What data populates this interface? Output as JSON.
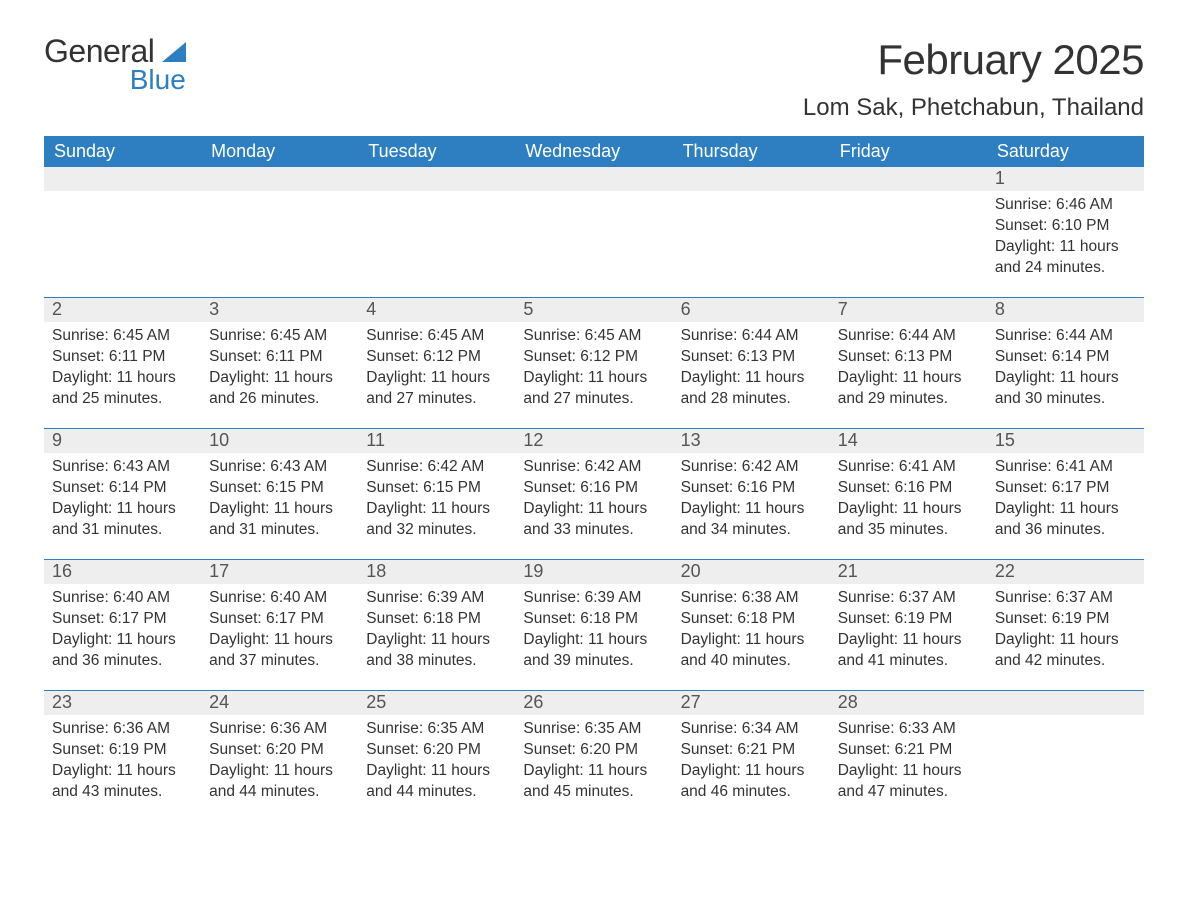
{
  "logo": {
    "wordA": "General",
    "wordB": "Blue",
    "triangleColor": "#2d7fc1"
  },
  "colors": {
    "headerBg": "#2d7fc1",
    "headerText": "#ffffff",
    "dayStripBg": "#eeeeee",
    "borderTop": "#2d7fc1",
    "bodyText": "#333333"
  },
  "title": "February 2025",
  "location": "Lom Sak, Phetchabun, Thailand",
  "weekdays": [
    "Sunday",
    "Monday",
    "Tuesday",
    "Wednesday",
    "Thursday",
    "Friday",
    "Saturday"
  ],
  "weeks": [
    [
      {
        "day": "",
        "lines": [
          "",
          "",
          "",
          ""
        ]
      },
      {
        "day": "",
        "lines": [
          "",
          "",
          "",
          ""
        ]
      },
      {
        "day": "",
        "lines": [
          "",
          "",
          "",
          ""
        ]
      },
      {
        "day": "",
        "lines": [
          "",
          "",
          "",
          ""
        ]
      },
      {
        "day": "",
        "lines": [
          "",
          "",
          "",
          ""
        ]
      },
      {
        "day": "",
        "lines": [
          "",
          "",
          "",
          ""
        ]
      },
      {
        "day": "1",
        "lines": [
          "Sunrise: 6:46 AM",
          "Sunset: 6:10 PM",
          "Daylight: 11 hours",
          "and 24 minutes."
        ]
      }
    ],
    [
      {
        "day": "2",
        "lines": [
          "Sunrise: 6:45 AM",
          "Sunset: 6:11 PM",
          "Daylight: 11 hours",
          "and 25 minutes."
        ]
      },
      {
        "day": "3",
        "lines": [
          "Sunrise: 6:45 AM",
          "Sunset: 6:11 PM",
          "Daylight: 11 hours",
          "and 26 minutes."
        ]
      },
      {
        "day": "4",
        "lines": [
          "Sunrise: 6:45 AM",
          "Sunset: 6:12 PM",
          "Daylight: 11 hours",
          "and 27 minutes."
        ]
      },
      {
        "day": "5",
        "lines": [
          "Sunrise: 6:45 AM",
          "Sunset: 6:12 PM",
          "Daylight: 11 hours",
          "and 27 minutes."
        ]
      },
      {
        "day": "6",
        "lines": [
          "Sunrise: 6:44 AM",
          "Sunset: 6:13 PM",
          "Daylight: 11 hours",
          "and 28 minutes."
        ]
      },
      {
        "day": "7",
        "lines": [
          "Sunrise: 6:44 AM",
          "Sunset: 6:13 PM",
          "Daylight: 11 hours",
          "and 29 minutes."
        ]
      },
      {
        "day": "8",
        "lines": [
          "Sunrise: 6:44 AM",
          "Sunset: 6:14 PM",
          "Daylight: 11 hours",
          "and 30 minutes."
        ]
      }
    ],
    [
      {
        "day": "9",
        "lines": [
          "Sunrise: 6:43 AM",
          "Sunset: 6:14 PM",
          "Daylight: 11 hours",
          "and 31 minutes."
        ]
      },
      {
        "day": "10",
        "lines": [
          "Sunrise: 6:43 AM",
          "Sunset: 6:15 PM",
          "Daylight: 11 hours",
          "and 31 minutes."
        ]
      },
      {
        "day": "11",
        "lines": [
          "Sunrise: 6:42 AM",
          "Sunset: 6:15 PM",
          "Daylight: 11 hours",
          "and 32 minutes."
        ]
      },
      {
        "day": "12",
        "lines": [
          "Sunrise: 6:42 AM",
          "Sunset: 6:16 PM",
          "Daylight: 11 hours",
          "and 33 minutes."
        ]
      },
      {
        "day": "13",
        "lines": [
          "Sunrise: 6:42 AM",
          "Sunset: 6:16 PM",
          "Daylight: 11 hours",
          "and 34 minutes."
        ]
      },
      {
        "day": "14",
        "lines": [
          "Sunrise: 6:41 AM",
          "Sunset: 6:16 PM",
          "Daylight: 11 hours",
          "and 35 minutes."
        ]
      },
      {
        "day": "15",
        "lines": [
          "Sunrise: 6:41 AM",
          "Sunset: 6:17 PM",
          "Daylight: 11 hours",
          "and 36 minutes."
        ]
      }
    ],
    [
      {
        "day": "16",
        "lines": [
          "Sunrise: 6:40 AM",
          "Sunset: 6:17 PM",
          "Daylight: 11 hours",
          "and 36 minutes."
        ]
      },
      {
        "day": "17",
        "lines": [
          "Sunrise: 6:40 AM",
          "Sunset: 6:17 PM",
          "Daylight: 11 hours",
          "and 37 minutes."
        ]
      },
      {
        "day": "18",
        "lines": [
          "Sunrise: 6:39 AM",
          "Sunset: 6:18 PM",
          "Daylight: 11 hours",
          "and 38 minutes."
        ]
      },
      {
        "day": "19",
        "lines": [
          "Sunrise: 6:39 AM",
          "Sunset: 6:18 PM",
          "Daylight: 11 hours",
          "and 39 minutes."
        ]
      },
      {
        "day": "20",
        "lines": [
          "Sunrise: 6:38 AM",
          "Sunset: 6:18 PM",
          "Daylight: 11 hours",
          "and 40 minutes."
        ]
      },
      {
        "day": "21",
        "lines": [
          "Sunrise: 6:37 AM",
          "Sunset: 6:19 PM",
          "Daylight: 11 hours",
          "and 41 minutes."
        ]
      },
      {
        "day": "22",
        "lines": [
          "Sunrise: 6:37 AM",
          "Sunset: 6:19 PM",
          "Daylight: 11 hours",
          "and 42 minutes."
        ]
      }
    ],
    [
      {
        "day": "23",
        "lines": [
          "Sunrise: 6:36 AM",
          "Sunset: 6:19 PM",
          "Daylight: 11 hours",
          "and 43 minutes."
        ]
      },
      {
        "day": "24",
        "lines": [
          "Sunrise: 6:36 AM",
          "Sunset: 6:20 PM",
          "Daylight: 11 hours",
          "and 44 minutes."
        ]
      },
      {
        "day": "25",
        "lines": [
          "Sunrise: 6:35 AM",
          "Sunset: 6:20 PM",
          "Daylight: 11 hours",
          "and 44 minutes."
        ]
      },
      {
        "day": "26",
        "lines": [
          "Sunrise: 6:35 AM",
          "Sunset: 6:20 PM",
          "Daylight: 11 hours",
          "and 45 minutes."
        ]
      },
      {
        "day": "27",
        "lines": [
          "Sunrise: 6:34 AM",
          "Sunset: 6:21 PM",
          "Daylight: 11 hours",
          "and 46 minutes."
        ]
      },
      {
        "day": "28",
        "lines": [
          "Sunrise: 6:33 AM",
          "Sunset: 6:21 PM",
          "Daylight: 11 hours",
          "and 47 minutes."
        ]
      },
      {
        "day": "",
        "lines": [
          "",
          "",
          "",
          ""
        ]
      }
    ]
  ]
}
